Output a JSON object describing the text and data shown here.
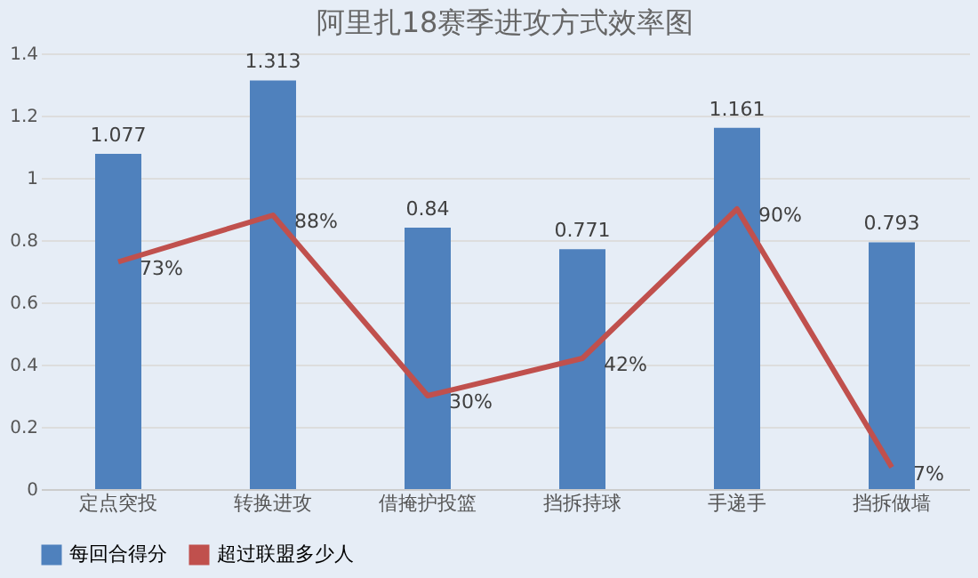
{
  "chart_data": {
    "type": "bar",
    "title": "阿里扎18赛季进攻方式效率图",
    "categories": [
      "定点突投",
      "转换进攻",
      "借掩护投篮",
      "挡拆持球",
      "手递手",
      "挡拆做墙"
    ],
    "series": [
      {
        "name": "每回合得分",
        "color": "#4f81bd",
        "values": [
          1.077,
          1.313,
          0.84,
          0.771,
          1.161,
          0.793
        ],
        "value_labels": [
          "1.077",
          "1.313",
          "0.84",
          "0.771",
          "1.161",
          "0.793"
        ]
      },
      {
        "name": "超过联盟多少人",
        "type": "line",
        "color": "#c0504d",
        "values": [
          0.73,
          0.88,
          0.3,
          0.42,
          0.9,
          0.07
        ],
        "value_labels": [
          "73%",
          "88%",
          "30%",
          "42%",
          "90%",
          "7%"
        ]
      }
    ],
    "ylim": [
      0,
      1.4
    ],
    "yticks": [
      0,
      0.2,
      0.4,
      0.6,
      0.8,
      1,
      1.2,
      1.4
    ],
    "grid": "y",
    "legend": "bottom"
  }
}
